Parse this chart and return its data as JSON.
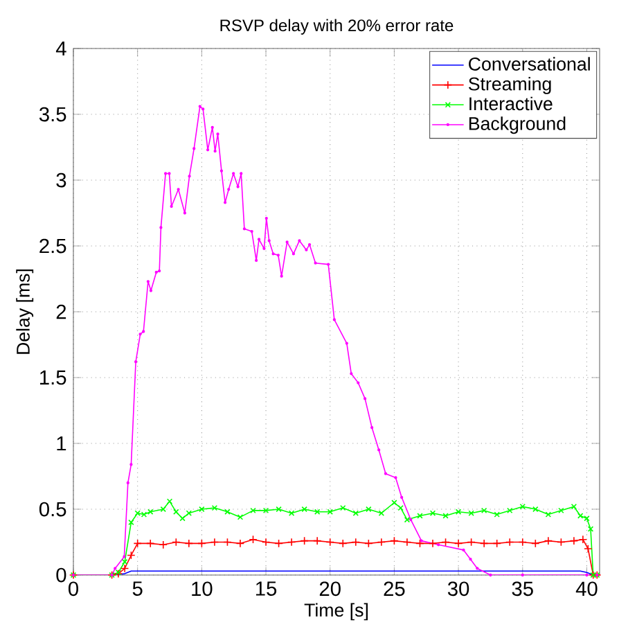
{
  "chart_data": {
    "type": "line",
    "title": "RSVP delay with 20% error rate",
    "xlabel": "Time [s]",
    "ylabel": "Delay [ms]",
    "xlim": [
      0,
      41
    ],
    "ylim": [
      0,
      4
    ],
    "xticks": [
      0,
      5,
      10,
      15,
      20,
      25,
      30,
      35,
      40
    ],
    "yticks": [
      0,
      0.5,
      1,
      1.5,
      2,
      2.5,
      3,
      3.5,
      4
    ],
    "grid": true,
    "legend": "top right",
    "line_style": "solid",
    "series": [
      {
        "name": "Conversational",
        "color": "#0000ff",
        "marker": "none",
        "x": [
          0,
          3,
          4,
          4.5,
          5,
          10,
          15,
          20,
          25,
          30,
          35,
          39.5,
          40,
          40.5,
          40.8
        ],
        "values": [
          0,
          0,
          0.01,
          0.03,
          0.03,
          0.03,
          0.03,
          0.03,
          0.03,
          0.03,
          0.03,
          0.03,
          0.02,
          0,
          0
        ]
      },
      {
        "name": "Streaming",
        "color": "#ff0000",
        "marker": "cross",
        "x": [
          0,
          3,
          3.5,
          4,
          4.5,
          5,
          6,
          7,
          8,
          9,
          10,
          11,
          12,
          13,
          14,
          15,
          16,
          17,
          18,
          19,
          20,
          21,
          22,
          23,
          24,
          25,
          26,
          27,
          28,
          29,
          30,
          31,
          32,
          33,
          34,
          35,
          36,
          37,
          38,
          39,
          39.7,
          40.1,
          40.5,
          40.8
        ],
        "values": [
          0,
          0,
          0.01,
          0.05,
          0.15,
          0.24,
          0.24,
          0.23,
          0.25,
          0.24,
          0.24,
          0.25,
          0.25,
          0.24,
          0.27,
          0.25,
          0.24,
          0.25,
          0.26,
          0.26,
          0.25,
          0.24,
          0.25,
          0.24,
          0.25,
          0.26,
          0.25,
          0.24,
          0.24,
          0.25,
          0.24,
          0.25,
          0.24,
          0.24,
          0.25,
          0.25,
          0.24,
          0.26,
          0.25,
          0.26,
          0.27,
          0.2,
          0,
          0
        ]
      },
      {
        "name": "Interactive",
        "color": "#00ff00",
        "marker": "cross",
        "x": [
          0,
          3,
          3.5,
          4,
          4.5,
          5,
          5.5,
          6,
          7,
          7.5,
          8,
          8.5,
          9,
          10,
          11,
          12,
          13,
          14,
          15,
          16,
          17,
          18,
          19,
          20,
          21,
          22,
          23,
          24,
          25,
          25.5,
          26,
          27,
          28,
          29,
          30,
          31,
          32,
          33,
          34,
          35,
          36,
          37,
          38,
          39,
          39.5,
          40,
          40.3,
          40.5,
          40.8
        ],
        "values": [
          0,
          0,
          0.02,
          0.1,
          0.4,
          0.47,
          0.46,
          0.48,
          0.5,
          0.56,
          0.48,
          0.43,
          0.47,
          0.5,
          0.51,
          0.48,
          0.44,
          0.49,
          0.49,
          0.5,
          0.47,
          0.5,
          0.48,
          0.48,
          0.51,
          0.47,
          0.5,
          0.47,
          0.55,
          0.51,
          0.42,
          0.45,
          0.47,
          0.45,
          0.48,
          0.47,
          0.49,
          0.46,
          0.49,
          0.52,
          0.5,
          0.46,
          0.49,
          0.52,
          0.45,
          0.43,
          0.35,
          0,
          0
        ]
      },
      {
        "name": "Background",
        "color": "#ff00ff",
        "marker": "circle",
        "x": [
          0,
          3,
          3.25,
          3.96,
          4.25,
          4.5,
          4.86,
          5.21,
          5.46,
          5.82,
          6.04,
          6.46,
          6.7,
          6.82,
          7.18,
          7.47,
          7.64,
          8.18,
          8.68,
          9.04,
          9.4,
          9.86,
          10.1,
          10.47,
          10.83,
          11.04,
          11.25,
          11.54,
          11.82,
          12.1,
          12.47,
          12.82,
          13.07,
          13.32,
          13.9,
          14.25,
          14.46,
          14.86,
          15.04,
          15.25,
          15.57,
          15.96,
          16.22,
          16.65,
          17.15,
          17.61,
          18.15,
          18.4,
          18.86,
          19.86,
          20.33,
          21.3,
          21.65,
          22.19,
          22.72,
          23.26,
          23.8,
          24.33,
          25.11,
          25.58,
          26.29,
          27.12,
          28.44,
          30.4,
          30.94,
          31.47,
          32.5,
          35,
          40,
          40.8
        ],
        "values": [
          0,
          0,
          0.05,
          0.14,
          0.7,
          0.84,
          1.62,
          1.83,
          1.85,
          2.23,
          2.16,
          2.3,
          2.31,
          2.64,
          3.05,
          3.05,
          2.8,
          2.93,
          2.75,
          3.03,
          3.24,
          3.56,
          3.54,
          3.23,
          3.4,
          3.22,
          3.35,
          3.07,
          2.83,
          2.93,
          3.05,
          2.95,
          3.05,
          2.63,
          2.61,
          2.39,
          2.55,
          2.48,
          2.71,
          2.54,
          2.44,
          2.43,
          2.27,
          2.53,
          2.44,
          2.54,
          2.47,
          2.51,
          2.37,
          2.36,
          1.94,
          1.76,
          1.53,
          1.46,
          1.34,
          1.12,
          0.95,
          0.77,
          0.74,
          0.59,
          0.42,
          0.26,
          0.23,
          0.19,
          0.12,
          0.05,
          0,
          0,
          0,
          0
        ]
      }
    ]
  }
}
